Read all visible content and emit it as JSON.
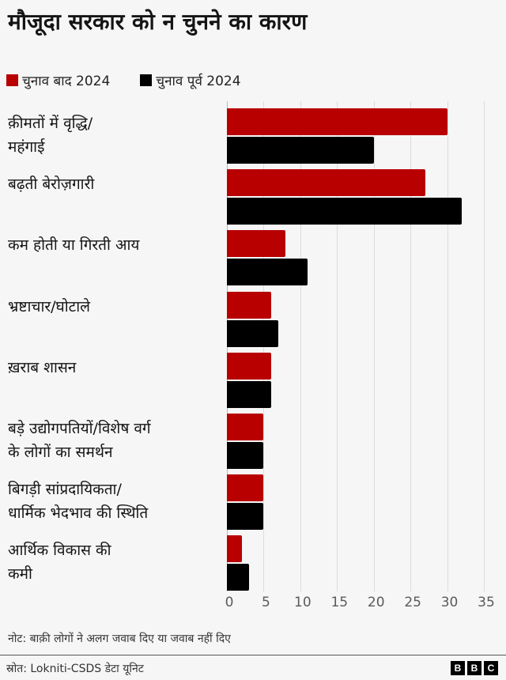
{
  "title": "मौजूदा सरकार को न चुनने का कारण",
  "legend": [
    {
      "label": "चुनाव बाद 2024",
      "color": "#b80000"
    },
    {
      "label": "चुनाव पूर्व 2024",
      "color": "#000000"
    }
  ],
  "categories": [
    [
      "क़ीमतों में वृद्धि/",
      "महंगाई"
    ],
    [
      "बढ़ती बेरोज़गारी"
    ],
    [
      "कम होती या गिरती आय"
    ],
    [
      "भ्रष्टाचार/घोटाले"
    ],
    [
      "ख़राब शासन"
    ],
    [
      "बड़े उद्योगपतियों/विशेष वर्ग",
      "के लोगों का समर्थन"
    ],
    [
      "बिगड़ी सांप्रदायिकता/",
      "धार्मिक भेदभाव की स्थिति"
    ],
    [
      "आर्थिक विकास की",
      "कमी"
    ]
  ],
  "ticks": [
    "0",
    "5",
    "10",
    "15",
    "20",
    "25",
    "30",
    "35"
  ],
  "note": "नोट: बाक़ी लोगों ने अलग जवाब दिए या जवाब नहीं दिए",
  "source": "स्रोत: Lokniti-CSDS डेटा यूनिट",
  "brand": [
    "B",
    "B",
    "C"
  ],
  "chart_data": {
    "type": "bar",
    "orientation": "horizontal",
    "title": "मौजूदा सरकार को न चुनने का कारण",
    "categories": [
      "क़ीमतों में वृद्धि/महंगाई",
      "बढ़ती बेरोज़गारी",
      "कम होती या गिरती आय",
      "भ्रष्टाचार/घोटाले",
      "ख़राब शासन",
      "बड़े उद्योगपतियों/विशेष वर्ग के लोगों का समर्थन",
      "बिगड़ी सांप्रदायिकता/धार्मिक भेदभाव की स्थिति",
      "आर्थिक विकास की कमी"
    ],
    "series": [
      {
        "name": "चुनाव बाद 2024",
        "color": "#b80000",
        "values": [
          30,
          27,
          8,
          6,
          6,
          5,
          5,
          2
        ]
      },
      {
        "name": "चुनाव पूर्व 2024",
        "color": "#000000",
        "values": [
          20,
          32,
          11,
          7,
          6,
          5,
          5,
          3
        ]
      }
    ],
    "xlabel": "",
    "ylabel": "",
    "xlim": [
      0,
      35
    ],
    "xticks": [
      0,
      5,
      10,
      15,
      20,
      25,
      30,
      35
    ],
    "grid": true,
    "legend_position": "top-left",
    "note": "नोट: बाक़ी लोगों ने अलग जवाब दिए या जवाब नहीं दिए",
    "source": "स्रोत: Lokniti-CSDS डेटा यूनिट"
  }
}
